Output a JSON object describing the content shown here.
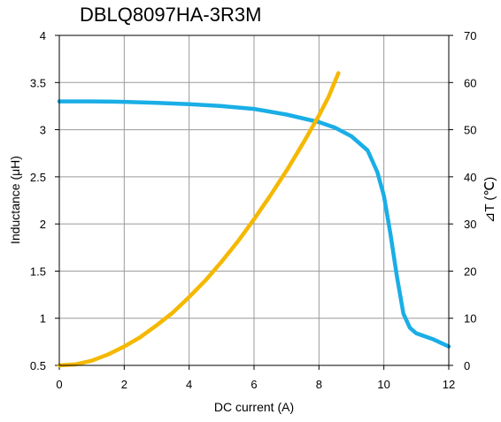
{
  "chart_data": {
    "type": "line",
    "title": "DBLQ8097HA-3R3M",
    "xlabel": "DC current (A)",
    "ylabel_left": "Inductance (μH)",
    "ylabel_right": "⊿T (℃)",
    "xlim": [
      0,
      12
    ],
    "ylim_left": [
      0.5,
      4
    ],
    "ylim_right": [
      0,
      70
    ],
    "grid": true,
    "x_ticks": [
      "0",
      "2",
      "4",
      "6",
      "8",
      "10",
      "12"
    ],
    "y_left_ticks": [
      "0.5",
      "1",
      "1.5",
      "2",
      "2.5",
      "3",
      "3.5",
      "4"
    ],
    "y_right_ticks": [
      "0",
      "10",
      "20",
      "30",
      "40",
      "50",
      "60",
      "70"
    ],
    "series": [
      {
        "axis": "left",
        "color": "#1AAEE6",
        "points": [
          [
            0,
            3.3
          ],
          [
            1,
            3.3
          ],
          [
            2,
            3.295
          ],
          [
            3,
            3.285
          ],
          [
            4,
            3.27
          ],
          [
            5,
            3.25
          ],
          [
            6,
            3.22
          ],
          [
            7,
            3.16
          ],
          [
            8,
            3.08
          ],
          [
            8.5,
            3.02
          ],
          [
            9,
            2.93
          ],
          [
            9.5,
            2.78
          ],
          [
            9.8,
            2.55
          ],
          [
            10,
            2.3
          ],
          [
            10.2,
            1.9
          ],
          [
            10.4,
            1.45
          ],
          [
            10.6,
            1.05
          ],
          [
            10.8,
            0.9
          ],
          [
            11,
            0.84
          ],
          [
            11.5,
            0.78
          ],
          [
            12,
            0.7
          ]
        ]
      },
      {
        "axis": "right",
        "color": "#F5B800",
        "points": [
          [
            0,
            0
          ],
          [
            0.5,
            0.2
          ],
          [
            1,
            1
          ],
          [
            1.5,
            2.3
          ],
          [
            2,
            4
          ],
          [
            2.5,
            6
          ],
          [
            3,
            8.5
          ],
          [
            3.5,
            11.2
          ],
          [
            4,
            14.5
          ],
          [
            4.5,
            18
          ],
          [
            5,
            22
          ],
          [
            5.5,
            26.3
          ],
          [
            6,
            31
          ],
          [
            6.5,
            36
          ],
          [
            7,
            41.3
          ],
          [
            7.5,
            47
          ],
          [
            8,
            53
          ],
          [
            8.3,
            57
          ],
          [
            8.6,
            62
          ]
        ]
      }
    ]
  }
}
